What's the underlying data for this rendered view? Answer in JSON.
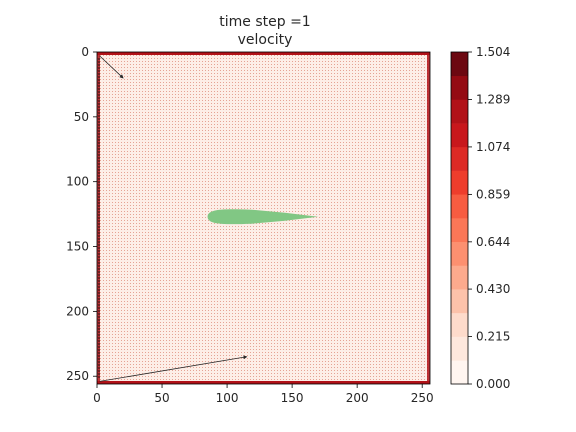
{
  "chart_data": {
    "type": "heatmap",
    "title_lines": [
      "time step =1",
      "velocity"
    ],
    "x_ticks": [
      0,
      50,
      100,
      150,
      200,
      250
    ],
    "y_ticks": [
      0,
      50,
      100,
      150,
      200,
      250
    ],
    "xlim": [
      0,
      256
    ],
    "ylim": [
      256,
      0
    ],
    "y_inverted": true,
    "grid_size": 256,
    "colormap": "Reds",
    "colorbar": {
      "min": 0.0,
      "max": 1.504,
      "levels": 14,
      "tick_values": [
        0.0,
        0.215,
        0.43,
        0.644,
        0.859,
        1.074,
        1.289,
        1.504
      ],
      "tick_labels": [
        "0.000",
        "0.215",
        "0.430",
        "0.644",
        "0.859",
        "1.074",
        "1.289",
        "1.504"
      ],
      "colors": [
        "#fff5f0",
        "#fee8dd",
        "#fedbcb",
        "#fcc2aa",
        "#fcaa8d",
        "#fc9070",
        "#fb7757",
        "#f75c41",
        "#ee3d2c",
        "#dd2a25",
        "#c8171c",
        "#b11218",
        "#940b13",
        "#6c0811"
      ]
    },
    "background_value": 0.02,
    "boundary_value": 1.2,
    "obstacle": {
      "color": "#81c784",
      "description_value": "masked",
      "centerline_y": 127,
      "x_start": 85,
      "x_end": 170
    },
    "annotations": [
      {
        "kind": "arrow",
        "x1": 2,
        "y1": 3,
        "x2": 20,
        "y2": 20
      },
      {
        "kind": "arrow",
        "x1": 2,
        "y1": 254,
        "x2": 115,
        "y2": 235
      }
    ]
  }
}
